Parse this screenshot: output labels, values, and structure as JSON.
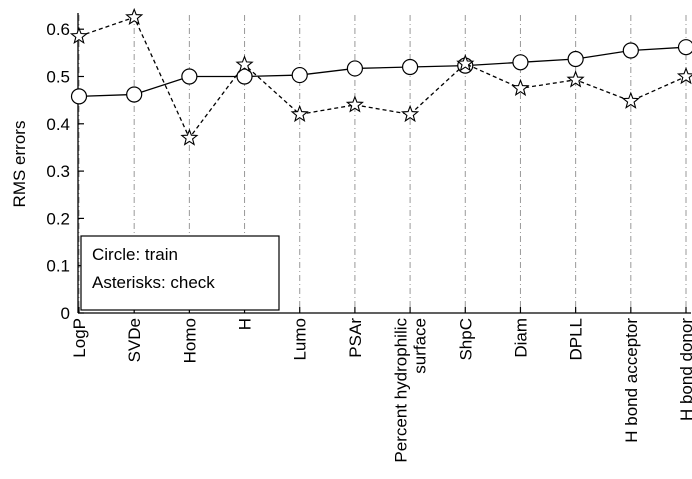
{
  "chart_data": {
    "type": "line",
    "title": "",
    "xlabel": "",
    "ylabel": "RMS errors",
    "ylim": [
      0,
      0.63
    ],
    "yticks": [
      "0",
      "0.1",
      "0.2",
      "0.3",
      "0.4",
      "0.5",
      "0.6"
    ],
    "categories": [
      "LogP",
      "SVDe",
      "Homo",
      "H",
      "Lumo",
      "PSAr",
      "Percent hydrophilic\nsurface",
      "ShpC",
      "Diam",
      "DPLL",
      "H bond acceptor",
      "H bond donor"
    ],
    "series": [
      {
        "name": "train",
        "marker": "circle",
        "line_style": "solid",
        "values": [
          0.458,
          0.462,
          0.5,
          0.5,
          0.503,
          0.517,
          0.52,
          0.523,
          0.53,
          0.537,
          0.555,
          0.562
        ]
      },
      {
        "name": "check",
        "marker": "star",
        "line_style": "dashed",
        "values": [
          0.585,
          0.625,
          0.37,
          0.525,
          0.42,
          0.44,
          0.42,
          0.527,
          0.475,
          0.493,
          0.448,
          0.5
        ]
      }
    ],
    "grid": "vertical dash-dot lines at each category",
    "legend": {
      "position": "bottom-left",
      "lines": [
        "Circle: train",
        "Asterisks: check"
      ]
    },
    "colors": {
      "line": "#000000",
      "marker_fill": "#ffffff",
      "grid": "#999999"
    }
  }
}
